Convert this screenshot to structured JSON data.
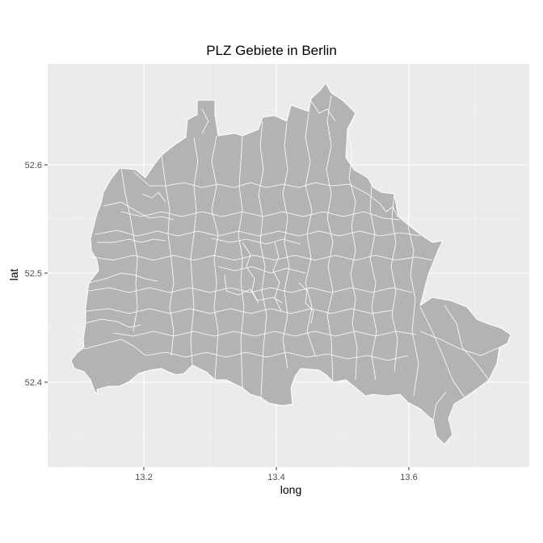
{
  "plot": {
    "title": "PLZ Gebiete in Berlin",
    "xlabel": "long",
    "ylabel": "lat",
    "x_ticks": [
      "13.2",
      "13.4",
      "13.6"
    ],
    "y_ticks": [
      "52.4",
      "52.5",
      "52.6"
    ]
  },
  "colors": {
    "panel_bg": "#ebebeb",
    "grid": "#ffffff",
    "fill": "#b3b3b3",
    "border": "#ffffff"
  }
}
